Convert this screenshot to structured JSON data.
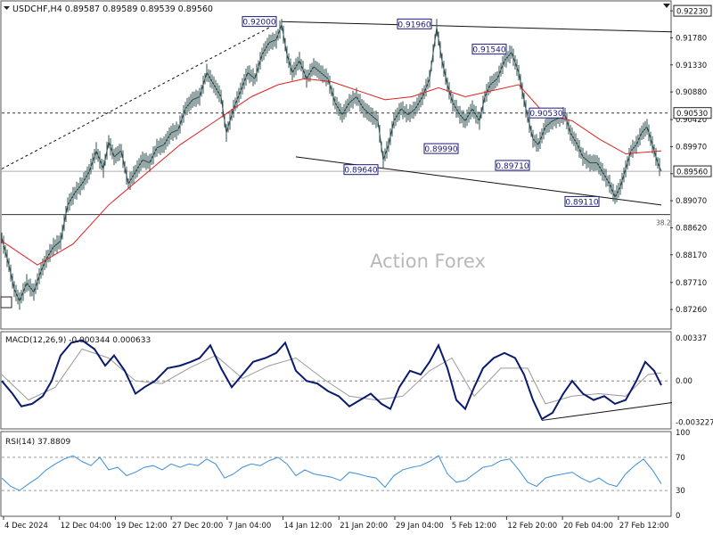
{
  "header": {
    "symbol_line": "USDCHF,H4  0.89587 0.89589 0.89539 0.89560",
    "watermark": "Action Forex"
  },
  "chart_data": [
    {
      "type": "candlestick",
      "panel": "price",
      "ylim": [
        0.8695,
        0.9238
      ],
      "y_ticks": [
        "0.92230",
        "0.91780",
        "0.91330",
        "0.90880",
        "0.90420",
        "0.89970",
        "0.89520",
        "0.89070",
        "0.88620",
        "0.88170",
        "0.87710",
        "0.87260"
      ],
      "y_tick_values": [
        0.9223,
        0.9178,
        0.9133,
        0.9088,
        0.9042,
        0.8997,
        0.8952,
        0.8907,
        0.8862,
        0.8817,
        0.8771,
        0.8726
      ],
      "x_ticks": [
        "4 Dec 2024",
        "12 Dec 04:00",
        "19 Dec 12:00",
        "27 Dec 20:00",
        "7 Jan 04:00",
        "14 Jan 12:00",
        "21 Jan 20:00",
        "29 Jan 04:00",
        "5 Feb 12:00",
        "12 Feb 20:00",
        "20 Feb 04:00",
        "27 Feb 12:00"
      ],
      "close_path": [
        [
          0,
          0.8845
        ],
        [
          8,
          0.88
        ],
        [
          14,
          0.876
        ],
        [
          20,
          0.874
        ],
        [
          28,
          0.877
        ],
        [
          36,
          0.8755
        ],
        [
          44,
          0.879
        ],
        [
          50,
          0.881
        ],
        [
          58,
          0.883
        ],
        [
          66,
          0.884
        ],
        [
          74,
          0.89
        ],
        [
          82,
          0.892
        ],
        [
          90,
          0.8935
        ],
        [
          98,
          0.8955
        ],
        [
          106,
          0.899
        ],
        [
          114,
          0.896
        ],
        [
          120,
          0.9005
        ],
        [
          126,
          0.898
        ],
        [
          134,
          0.899
        ],
        [
          142,
          0.8935
        ],
        [
          150,
          0.8955
        ],
        [
          158,
          0.8975
        ],
        [
          166,
          0.897
        ],
        [
          174,
          0.8995
        ],
        [
          182,
          0.9
        ],
        [
          190,
          0.902
        ],
        [
          198,
          0.9025
        ],
        [
          206,
          0.906
        ],
        [
          214,
          0.9075
        ],
        [
          222,
          0.908
        ],
        [
          230,
          0.912
        ],
        [
          238,
          0.91
        ],
        [
          246,
          0.908
        ],
        [
          252,
          0.902
        ],
        [
          260,
          0.906
        ],
        [
          268,
          0.909
        ],
        [
          276,
          0.912
        ],
        [
          284,
          0.911
        ],
        [
          292,
          0.915
        ],
        [
          300,
          0.917
        ],
        [
          308,
          0.9175
        ],
        [
          314,
          0.92
        ],
        [
          320,
          0.915
        ],
        [
          326,
          0.912
        ],
        [
          334,
          0.914
        ],
        [
          342,
          0.911
        ],
        [
          350,
          0.913
        ],
        [
          358,
          0.912
        ],
        [
          366,
          0.911
        ],
        [
          374,
          0.907
        ],
        [
          382,
          0.905
        ],
        [
          390,
          0.907
        ],
        [
          398,
          0.908
        ],
        [
          406,
          0.906
        ],
        [
          414,
          0.905
        ],
        [
          422,
          0.904
        ],
        [
          428,
          0.8975
        ],
        [
          434,
          0.9
        ],
        [
          440,
          0.904
        ],
        [
          448,
          0.906
        ],
        [
          456,
          0.905
        ],
        [
          464,
          0.906
        ],
        [
          472,
          0.908
        ],
        [
          480,
          0.911
        ],
        [
          488,
          0.9195
        ],
        [
          494,
          0.914
        ],
        [
          500,
          0.91
        ],
        [
          506,
          0.907
        ],
        [
          514,
          0.905
        ],
        [
          520,
          0.904
        ],
        [
          528,
          0.906
        ],
        [
          536,
          0.904
        ],
        [
          542,
          0.908
        ],
        [
          548,
          0.91
        ],
        [
          556,
          0.911
        ],
        [
          564,
          0.914
        ],
        [
          572,
          0.9154
        ],
        [
          580,
          0.912
        ],
        [
          588,
          0.906
        ],
        [
          596,
          0.901
        ],
        [
          602,
          0.9
        ],
        [
          610,
          0.903
        ],
        [
          618,
          0.904
        ],
        [
          626,
          0.9045
        ],
        [
          632,
          0.905
        ],
        [
          638,
          0.902
        ],
        [
          646,
          0.9
        ],
        [
          652,
          0.898
        ],
        [
          660,
          0.897
        ],
        [
          668,
          0.897
        ],
        [
          676,
          0.895
        ],
        [
          682,
          0.8935
        ],
        [
          688,
          0.8913
        ],
        [
          694,
          0.893
        ],
        [
          700,
          0.896
        ],
        [
          706,
          0.899
        ],
        [
          712,
          0.9
        ],
        [
          718,
          0.902
        ],
        [
          724,
          0.903
        ],
        [
          730,
          0.9
        ],
        [
          736,
          0.897
        ],
        [
          740,
          0.8956
        ]
      ],
      "ma_path": [
        [
          0,
          0.884
        ],
        [
          40,
          0.88
        ],
        [
          80,
          0.8835
        ],
        [
          120,
          0.89
        ],
        [
          160,
          0.895
        ],
        [
          200,
          0.9
        ],
        [
          240,
          0.904
        ],
        [
          280,
          0.908
        ],
        [
          310,
          0.91
        ],
        [
          340,
          0.911
        ],
        [
          370,
          0.9105
        ],
        [
          400,
          0.909
        ],
        [
          430,
          0.9075
        ],
        [
          460,
          0.908
        ],
        [
          490,
          0.9095
        ],
        [
          520,
          0.908
        ],
        [
          550,
          0.909
        ],
        [
          580,
          0.91
        ],
        [
          610,
          0.905
        ],
        [
          640,
          0.904
        ],
        [
          670,
          0.901
        ],
        [
          700,
          0.8985
        ],
        [
          740,
          0.899
        ]
      ],
      "ma_color": "#e02020",
      "price_color": "#2f4f4f",
      "annotations": [
        {
          "label": "0.92000",
          "x": 314,
          "y": 0.92
        },
        {
          "label": "0.91960",
          "x": 488,
          "y": 0.9196
        },
        {
          "label": "0.91540",
          "x": 572,
          "y": 0.9154
        },
        {
          "label": "0.90530",
          "x": 626,
          "y": 0.9053
        },
        {
          "label": "0.89990",
          "x": 514,
          "y": 0.8999
        },
        {
          "label": "0.89710",
          "x": 594,
          "y": 0.8971
        },
        {
          "label": "0.89640",
          "x": 424,
          "y": 0.8964
        },
        {
          "label": "0.89110",
          "x": 672,
          "y": 0.8911
        },
        {
          "label": "38.2",
          "x": 742,
          "y": 0.888
        }
      ],
      "right_tags": [
        {
          "label": "0.92230",
          "value": 0.9223,
          "style": "top"
        },
        {
          "label": "0.90530",
          "value": 0.9053,
          "style": "hline"
        },
        {
          "label": "0.89560",
          "value": 0.8956,
          "style": "current"
        }
      ],
      "horizontal_levels": [
        {
          "value": 0.9053,
          "style": "dashed"
        },
        {
          "value": 0.8956,
          "style": "solid-gray"
        },
        {
          "value": 0.8884,
          "style": "solid-dark"
        }
      ],
      "trendlines": [
        {
          "points": [
            [
              0,
              0.896
            ],
            [
              300,
              0.9195
            ]
          ],
          "style": "dashed"
        },
        {
          "points": [
            [
              314,
              0.9205
            ],
            [
              752,
              0.9188
            ]
          ],
          "style": "solid"
        },
        {
          "points": [
            [
              330,
              0.898
            ],
            [
              740,
              0.89
            ]
          ],
          "style": "solid"
        }
      ]
    },
    {
      "type": "line",
      "panel": "macd",
      "title": "MACD(12,26,9) -0.000344 0.000633",
      "ylim": [
        -0.0037,
        0.0038
      ],
      "y_ticks": [
        "0.00337",
        "0.00",
        "-0.003227"
      ],
      "y_tick_values": [
        0.00337,
        0.0,
        -0.003227
      ],
      "macd_path": [
        [
          0,
          0.0
        ],
        [
          12,
          -0.001
        ],
        [
          22,
          -0.002
        ],
        [
          34,
          -0.0018
        ],
        [
          46,
          -0.0012
        ],
        [
          56,
          0.0
        ],
        [
          66,
          0.002
        ],
        [
          78,
          0.003
        ],
        [
          90,
          0.0032
        ],
        [
          104,
          0.0025
        ],
        [
          116,
          0.0012
        ],
        [
          126,
          0.002
        ],
        [
          138,
          0.0008
        ],
        [
          150,
          -0.001
        ],
        [
          160,
          -0.0005
        ],
        [
          172,
          0.0
        ],
        [
          186,
          0.001
        ],
        [
          200,
          0.0012
        ],
        [
          212,
          0.0015
        ],
        [
          222,
          0.0018
        ],
        [
          234,
          0.0028
        ],
        [
          246,
          0.001
        ],
        [
          258,
          -0.0005
        ],
        [
          270,
          0.0005
        ],
        [
          282,
          0.0015
        ],
        [
          296,
          0.0018
        ],
        [
          308,
          0.0022
        ],
        [
          318,
          0.003
        ],
        [
          330,
          0.0008
        ],
        [
          342,
          0.0
        ],
        [
          354,
          -0.0002
        ],
        [
          366,
          -0.0008
        ],
        [
          378,
          -0.0012
        ],
        [
          390,
          -0.002
        ],
        [
          402,
          -0.0015
        ],
        [
          414,
          -0.001
        ],
        [
          426,
          -0.0018
        ],
        [
          436,
          -0.0022
        ],
        [
          446,
          -0.0005
        ],
        [
          458,
          0.0008
        ],
        [
          470,
          0.0005
        ],
        [
          480,
          0.0015
        ],
        [
          490,
          0.0028
        ],
        [
          500,
          0.001
        ],
        [
          510,
          -0.0015
        ],
        [
          520,
          -0.0022
        ],
        [
          530,
          -0.0005
        ],
        [
          540,
          0.001
        ],
        [
          552,
          0.0018
        ],
        [
          564,
          0.0022
        ],
        [
          576,
          0.0018
        ],
        [
          586,
          0.0005
        ],
        [
          596,
          -0.0015
        ],
        [
          606,
          -0.003
        ],
        [
          618,
          -0.0025
        ],
        [
          630,
          -0.001
        ],
        [
          640,
          0.0
        ],
        [
          652,
          -0.001
        ],
        [
          664,
          -0.0015
        ],
        [
          676,
          -0.0012
        ],
        [
          688,
          -0.0018
        ],
        [
          700,
          -0.0015
        ],
        [
          712,
          0.0
        ],
        [
          722,
          0.0015
        ],
        [
          732,
          0.0008
        ],
        [
          740,
          -0.000344
        ]
      ],
      "signal_path": [
        [
          0,
          0.0005
        ],
        [
          30,
          -0.0015
        ],
        [
          60,
          -0.0005
        ],
        [
          90,
          0.0025
        ],
        [
          120,
          0.0018
        ],
        [
          150,
          0.0
        ],
        [
          180,
          -0.0002
        ],
        [
          210,
          0.001
        ],
        [
          240,
          0.002
        ],
        [
          270,
          0.0002
        ],
        [
          300,
          0.0012
        ],
        [
          330,
          0.0018
        ],
        [
          360,
          0.0002
        ],
        [
          390,
          -0.0012
        ],
        [
          420,
          -0.0015
        ],
        [
          450,
          -0.0012
        ],
        [
          480,
          0.0008
        ],
        [
          505,
          0.0018
        ],
        [
          530,
          -0.0012
        ],
        [
          560,
          0.001
        ],
        [
          590,
          0.001
        ],
        [
          610,
          -0.0018
        ],
        [
          640,
          -0.0012
        ],
        [
          670,
          -0.001
        ],
        [
          700,
          -0.0012
        ],
        [
          725,
          0.0005
        ],
        [
          740,
          0.000633
        ]
      ],
      "macd_color": "#0a1a6e",
      "signal_color": "#9a9a9a",
      "trendline": {
        "points": [
          [
            606,
            -0.0031
          ],
          [
            752,
            -0.0017
          ]
        ]
      }
    },
    {
      "type": "line",
      "panel": "rsi",
      "title": "RSI(14) 37.8809",
      "ylim": [
        0,
        100
      ],
      "y_ticks": [
        "100",
        "70",
        "30",
        "0"
      ],
      "y_tick_values": [
        100,
        70,
        30,
        0
      ],
      "levels": [
        70,
        30
      ],
      "rsi_path": [
        [
          0,
          45
        ],
        [
          10,
          35
        ],
        [
          20,
          30
        ],
        [
          30,
          38
        ],
        [
          40,
          45
        ],
        [
          50,
          55
        ],
        [
          60,
          62
        ],
        [
          70,
          68
        ],
        [
          80,
          72
        ],
        [
          90,
          65
        ],
        [
          100,
          60
        ],
        [
          110,
          70
        ],
        [
          120,
          55
        ],
        [
          130,
          58
        ],
        [
          140,
          48
        ],
        [
          150,
          52
        ],
        [
          160,
          58
        ],
        [
          170,
          60
        ],
        [
          180,
          55
        ],
        [
          190,
          62
        ],
        [
          200,
          58
        ],
        [
          210,
          62
        ],
        [
          220,
          60
        ],
        [
          230,
          68
        ],
        [
          240,
          62
        ],
        [
          250,
          45
        ],
        [
          260,
          50
        ],
        [
          270,
          58
        ],
        [
          280,
          62
        ],
        [
          290,
          60
        ],
        [
          300,
          66
        ],
        [
          310,
          70
        ],
        [
          320,
          62
        ],
        [
          330,
          48
        ],
        [
          340,
          55
        ],
        [
          350,
          50
        ],
        [
          360,
          48
        ],
        [
          370,
          46
        ],
        [
          380,
          42
        ],
        [
          390,
          52
        ],
        [
          400,
          50
        ],
        [
          410,
          47
        ],
        [
          420,
          45
        ],
        [
          430,
          34
        ],
        [
          440,
          48
        ],
        [
          450,
          55
        ],
        [
          460,
          58
        ],
        [
          470,
          60
        ],
        [
          480,
          65
        ],
        [
          490,
          72
        ],
        [
          500,
          50
        ],
        [
          510,
          40
        ],
        [
          520,
          42
        ],
        [
          530,
          50
        ],
        [
          540,
          58
        ],
        [
          550,
          60
        ],
        [
          560,
          66
        ],
        [
          570,
          68
        ],
        [
          580,
          55
        ],
        [
          590,
          40
        ],
        [
          600,
          35
        ],
        [
          610,
          45
        ],
        [
          620,
          48
        ],
        [
          630,
          50
        ],
        [
          640,
          52
        ],
        [
          650,
          45
        ],
        [
          660,
          40
        ],
        [
          670,
          45
        ],
        [
          680,
          38
        ],
        [
          690,
          35
        ],
        [
          700,
          50
        ],
        [
          710,
          60
        ],
        [
          720,
          68
        ],
        [
          730,
          55
        ],
        [
          740,
          38
        ]
      ],
      "rsi_color": "#3a8fd8"
    }
  ]
}
